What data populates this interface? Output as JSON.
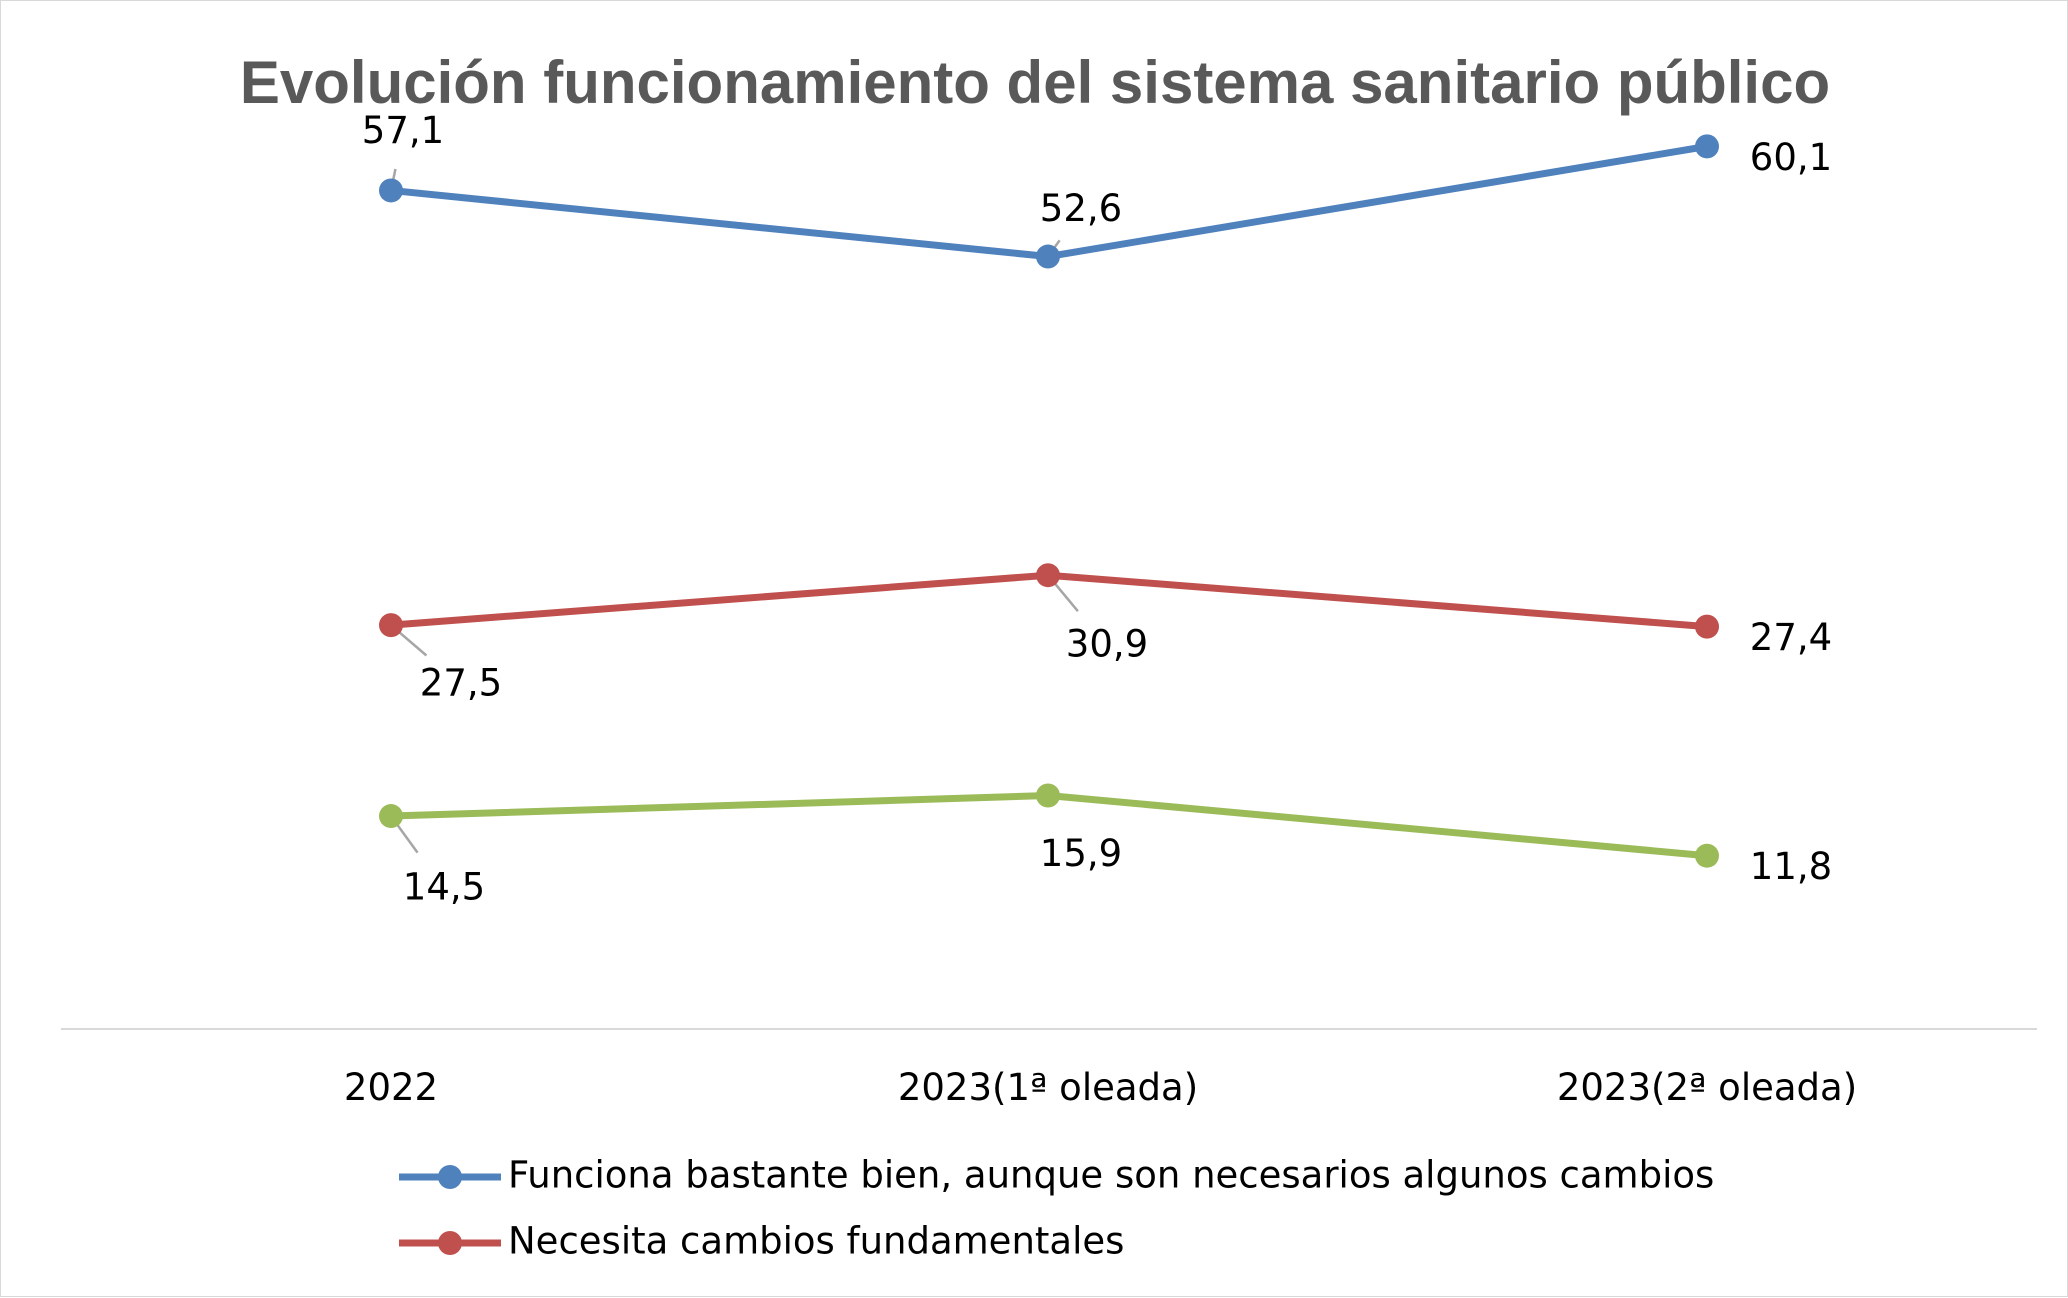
{
  "chart_data": {
    "type": "line",
    "title": "Evolución funcionamiento del sistema sanitario público",
    "categories": [
      "2022",
      "2023(1ª oleada)",
      "2023(2ª oleada)"
    ],
    "xlabel": "",
    "ylabel": "",
    "ylim": [
      0,
      70
    ],
    "grid": false,
    "legend_position": "bottom",
    "series": [
      {
        "name": "Funciona bastante bien, aunque son necesarios algunos cambios",
        "values": [
          57.1,
          52.6,
          60.1
        ],
        "labels": [
          "57,1",
          "52,6",
          "60,1"
        ],
        "color": "#4f81bd"
      },
      {
        "name": "Necesita cambios fundamentales",
        "values": [
          27.5,
          30.9,
          27.4
        ],
        "labels": [
          "27,5",
          "30,9",
          "27,4"
        ],
        "color": "#c0504d"
      },
      {
        "name": "",
        "values": [
          14.5,
          15.9,
          11.8
        ],
        "labels": [
          "14,5",
          "15,9",
          "11,8"
        ],
        "color": "#9bbb59",
        "in_legend": false
      }
    ]
  },
  "colors": {
    "title": "#595959",
    "axis": "#d9d9d9",
    "leader": "#a6a6a6"
  }
}
